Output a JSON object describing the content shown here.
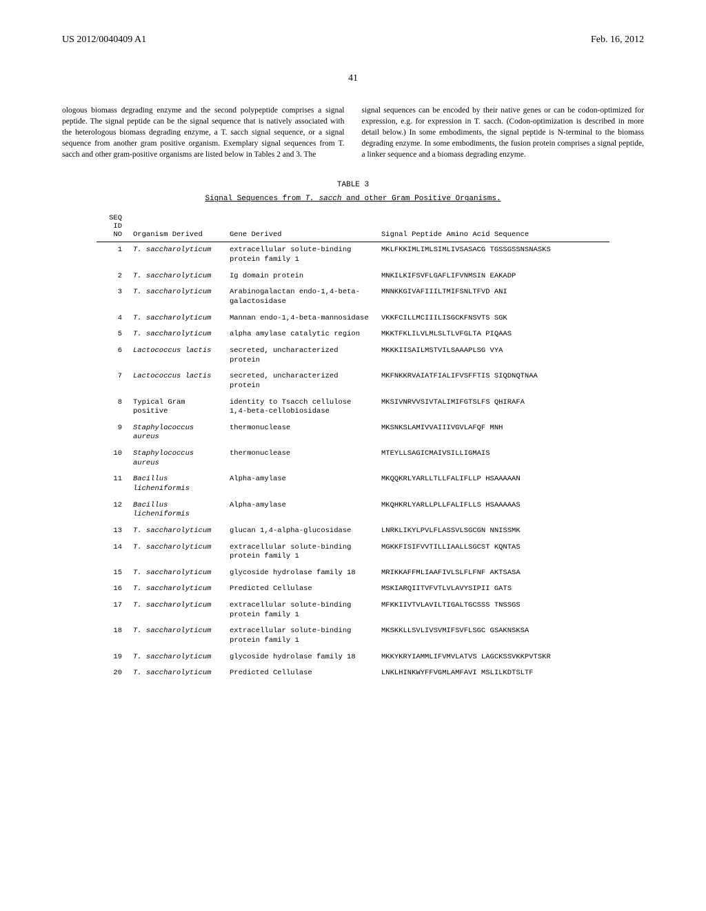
{
  "header": {
    "pub_number": "US 2012/0040409 A1",
    "pub_date": "Feb. 16, 2012"
  },
  "page_number": "41",
  "body": {
    "left_col": "ologous biomass degrading enzyme and the second polypeptide comprises a signal peptide. The signal peptide can be the signal sequence that is natively associated with the heterologous biomass degrading enzyme, a T. sacch signal sequence, or a signal sequence from another gram positive organism. Exemplary signal sequences from T. sacch and other gram-positive organisms are listed below in Tables 2 and 3. The",
    "right_col": "signal sequences can be encoded by their native genes or can be codon-optimized for expression, e.g. for expression in T. sacch. (Codon-optimization is described in more detail below.) In some embodiments, the signal peptide is N-terminal to the biomass degrading enzyme. In some embodiments, the fusion protein comprises a signal peptide, a linker sequence and a biomass degrading enzyme."
  },
  "table": {
    "label": "TABLE 3",
    "title_prefix": "Signal Sequences from",
    "title_italic": "T. sacch",
    "title_suffix": "and other Gram Positive Organisms.",
    "headers": {
      "seq": "SEQ ID NO",
      "organism": "Organism Derived",
      "gene": "Gene Derived",
      "peptide": "Signal Peptide Amino Acid Sequence"
    },
    "rows": [
      {
        "seq": "1",
        "organism": "T. saccharolyticum",
        "organism_italic": true,
        "gene": "extracellular solute-binding protein family 1",
        "peptide": "MKLFKKIMLIMLSIMLIVSASACG TGSSGSSNSNASKS"
      },
      {
        "seq": "2",
        "organism": "T. saccharolyticum",
        "organism_italic": true,
        "gene": "Ig domain protein",
        "peptide": "MNKILKIFSVFLGAFLIFVNMSIN EAKADP"
      },
      {
        "seq": "3",
        "organism": "T. saccharolyticum",
        "organism_italic": true,
        "gene": "Arabinogalactan endo-1,4-beta-galactosidase",
        "peptide": "MNNKKGIVAFIIILTMIFSNLTFVD ANI"
      },
      {
        "seq": "4",
        "organism": "T. saccharolyticum",
        "organism_italic": true,
        "gene": "Mannan endo-1,4-beta-mannosidase",
        "peptide": "VKKFCILLMCIIILISGCKFNSVTS SGK"
      },
      {
        "seq": "5",
        "organism": "T. saccharolyticum",
        "organism_italic": true,
        "gene": "alpha amylase catalytic region",
        "peptide": "MKKTFKLILVLMLSLTLVFGLTA PIQAAS"
      },
      {
        "seq": "6",
        "organism": "Lactococcus lactis",
        "organism_italic": true,
        "gene": "secreted, uncharacterized protein",
        "peptide": "MKKKIISAILMSTVILSAAAPLSG VYA"
      },
      {
        "seq": "7",
        "organism": "Lactococcus lactis",
        "organism_italic": true,
        "gene": "secreted, uncharacterized protein",
        "peptide": "MKFNKKRVAIATFIALIFVSFFTIS SIQDNQTNAA"
      },
      {
        "seq": "8",
        "organism": "Typical Gram positive",
        "organism_italic": false,
        "gene": "identity to Tsacch cellulose 1,4-beta-cellobiosidase",
        "peptide": "MKSIVNRVVSIVTALIMIFGTSLFS QHIRAFA"
      },
      {
        "seq": "9",
        "organism": "Staphylococcus aureus",
        "organism_italic": true,
        "gene": "thermonuclease",
        "peptide": "MKSNKSLAMIVVAIIIVGVLAFQF MNH"
      },
      {
        "seq": "10",
        "organism": "Staphylococcus aureus",
        "organism_italic": true,
        "gene": "thermonuclease",
        "peptide": "MTEYLLSAGICMAIVSILLIGMAIS"
      },
      {
        "seq": "11",
        "organism": "Bacillus licheniformis",
        "organism_italic": true,
        "gene": "Alpha-amylase",
        "peptide": "MKQQKRLYARLLTLLFALIFLLP HSAAAAAN"
      },
      {
        "seq": "12",
        "organism": "Bacillus licheniformis",
        "organism_italic": true,
        "gene": "Alpha-amylase",
        "peptide": "MKQHKRLYARLLPLLFALIFLLS HSAAAAAS"
      },
      {
        "seq": "13",
        "organism": "T. saccharolyticum",
        "organism_italic": true,
        "gene": "glucan 1,4-alpha-glucosidase",
        "peptide": "LNRKLIKYLPVLFLASSVLSGCGN NNISSMK"
      },
      {
        "seq": "14",
        "organism": "T. saccharolyticum",
        "organism_italic": true,
        "gene": "extracellular solute-binding protein family 1",
        "peptide": "MGKKFISIFVVTILLIAALLSGCST KQNTAS"
      },
      {
        "seq": "15",
        "organism": "T. saccharolyticum",
        "organism_italic": true,
        "gene": "glycoside hydrolase family 18",
        "peptide": "MRIKKAFFMLIAAFIVLSLFLFNF AKTSASA"
      },
      {
        "seq": "16",
        "organism": "T. saccharolyticum",
        "organism_italic": true,
        "gene": "Predicted Cellulase",
        "peptide": "MSKIARQIITVFVTLVLAVYSIPII GATS"
      },
      {
        "seq": "17",
        "organism": "T. saccharolyticum",
        "organism_italic": true,
        "gene": "extracellular solute-binding protein family 1",
        "peptide": "MFKKIIVTVLAVILTIGALTGCSSS TNSSGS"
      },
      {
        "seq": "18",
        "organism": "T. saccharolyticum",
        "organism_italic": true,
        "gene": "extracellular solute-binding protein family 1",
        "peptide": "MKSKKLLSVLIVSVMIFSVFLSGC GSAKNSKSA"
      },
      {
        "seq": "19",
        "organism": "T. saccharolyticum",
        "organism_italic": true,
        "gene": "glycoside hydrolase family 18",
        "peptide": "MKKYKRYIAMMLIFVMVLATVS LAGCKSSVKKPVTSKR"
      },
      {
        "seq": "20",
        "organism": "T. saccharolyticum",
        "organism_italic": true,
        "gene": "Predicted Cellulase",
        "peptide": "LNKLHINKWYFFVGMLAMFAVI MSLILKDTSLTF"
      }
    ]
  }
}
